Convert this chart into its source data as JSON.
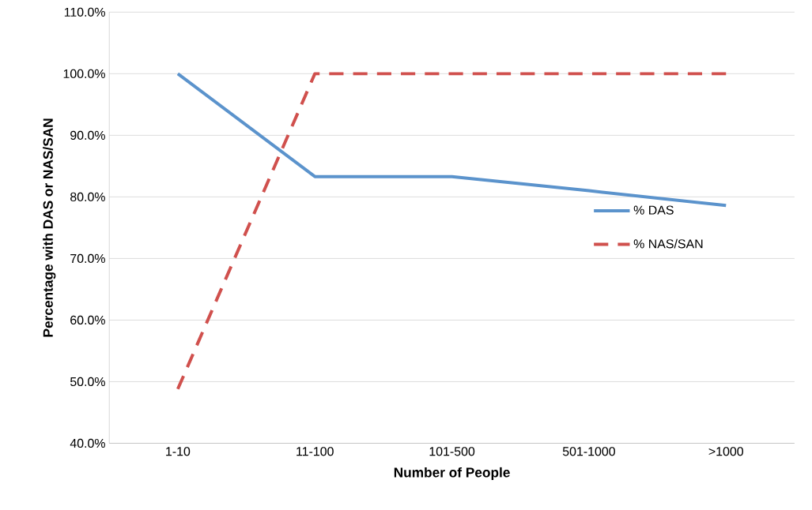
{
  "chart_data": {
    "type": "line",
    "xlabel": "Number of People",
    "ylabel": "Percentage with DAS or NAS/SAN",
    "categories": [
      "1-10",
      "11-100",
      "101-500",
      "501-1000",
      ">1000"
    ],
    "series": [
      {
        "name": "% DAS",
        "color": "#5b93cc",
        "values": [
          100.0,
          83.3,
          83.3,
          81.0,
          78.6
        ],
        "line_style": "solid"
      },
      {
        "name": "% NAS/SAN",
        "color": "#d0504d",
        "values": [
          48.8,
          100.0,
          100.0,
          100.0,
          100.0
        ],
        "line_style": "dashed"
      }
    ],
    "ylim": [
      40,
      110
    ],
    "yticks": [
      {
        "value": 40,
        "label": "40.0%"
      },
      {
        "value": 50,
        "label": "50.0%"
      },
      {
        "value": 60,
        "label": "60.0%"
      },
      {
        "value": 70,
        "label": "70.0%"
      },
      {
        "value": 80,
        "label": "80.0%"
      },
      {
        "value": 90,
        "label": "90.0%"
      },
      {
        "value": 100,
        "label": "100.0%"
      },
      {
        "value": 110,
        "label": "110.0%"
      }
    ],
    "grid": "y",
    "legend": "right",
    "marker": "none"
  }
}
